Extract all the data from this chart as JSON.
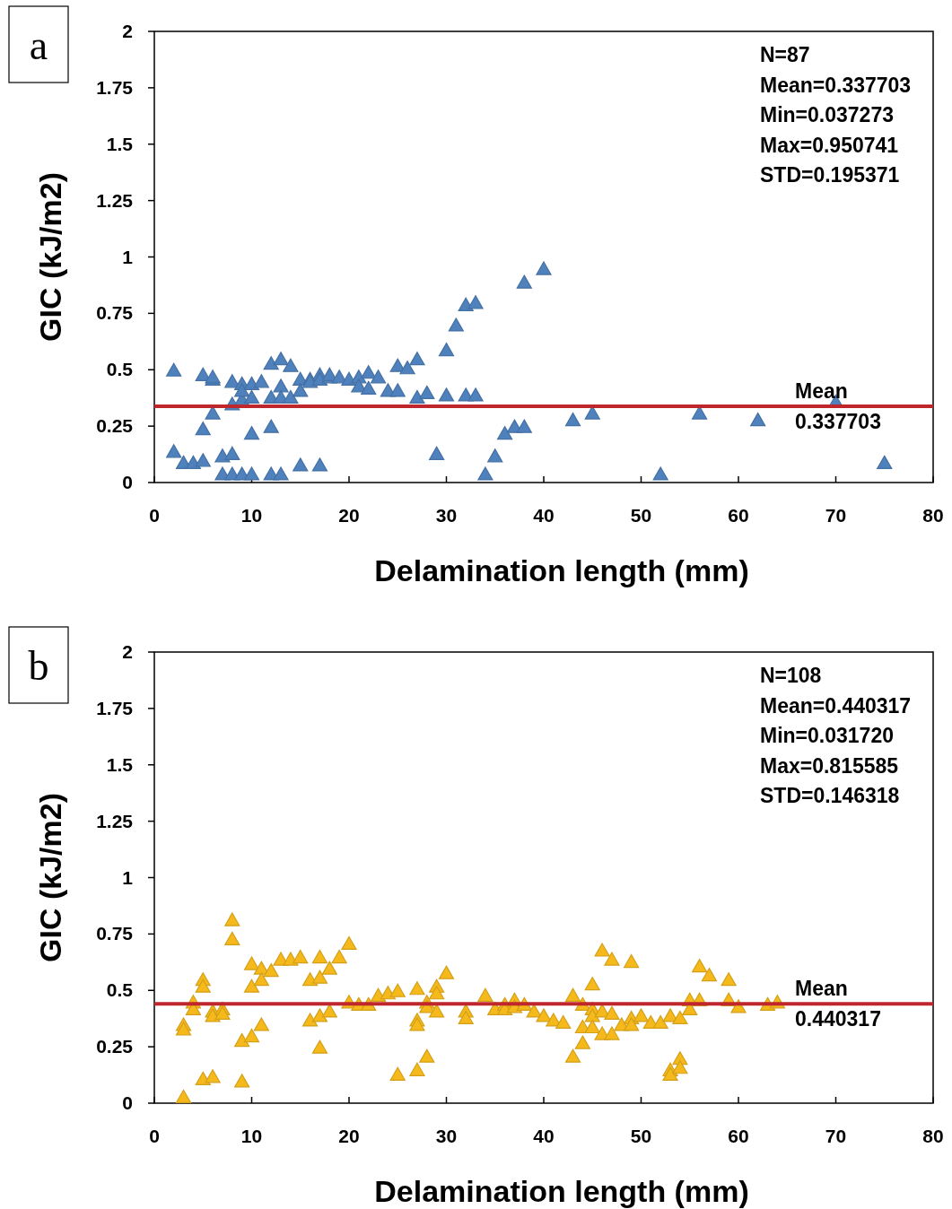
{
  "chart_data": [
    {
      "type": "scatter",
      "title": "a",
      "xlabel": "Delamination length (mm)",
      "ylabel": "GIC (kJ/m2)",
      "color": "#4f81bd",
      "marker": "triangle",
      "grid": false,
      "xlim": [
        0,
        80
      ],
      "xticks": [
        0,
        10,
        20,
        30,
        40,
        50,
        60,
        70,
        80
      ],
      "ylim": [
        0,
        2
      ],
      "yticks": [
        0,
        0.25,
        0.5,
        0.75,
        1,
        1.25,
        1.5,
        1.75,
        2
      ],
      "annotations": [
        "N=87",
        "Mean=0.337703",
        "Min=0.037273",
        "Max=0.950741",
        "STD=0.195371"
      ],
      "ref_lines": [
        {
          "axis": "y",
          "value": 0.337703,
          "label": "Mean\n0.337703",
          "color": "#c0272d"
        }
      ],
      "x": [
        2,
        2,
        3,
        4,
        5,
        5,
        5,
        6,
        6,
        6,
        7,
        7,
        8,
        8,
        8,
        8,
        9,
        9,
        9,
        9,
        10,
        10,
        10,
        10,
        11,
        12,
        12,
        12,
        12,
        13,
        13,
        13,
        13,
        14,
        14,
        15,
        15,
        15,
        16,
        16,
        17,
        17,
        17,
        18,
        18,
        19,
        20,
        21,
        21,
        22,
        22,
        23,
        24,
        25,
        25,
        26,
        27,
        27,
        28,
        29,
        30,
        30,
        31,
        32,
        32,
        33,
        33,
        34,
        35,
        36,
        37,
        38,
        38,
        40,
        43,
        45,
        52,
        56,
        62,
        70,
        75
      ],
      "values": [
        0.5,
        0.14,
        0.09,
        0.09,
        0.1,
        0.48,
        0.24,
        0.46,
        0.47,
        0.31,
        0.12,
        0.04,
        0.13,
        0.45,
        0.35,
        0.04,
        0.44,
        0.37,
        0.41,
        0.04,
        0.44,
        0.38,
        0.22,
        0.04,
        0.45,
        0.53,
        0.38,
        0.25,
        0.04,
        0.55,
        0.43,
        0.38,
        0.04,
        0.52,
        0.38,
        0.46,
        0.41,
        0.08,
        0.46,
        0.45,
        0.48,
        0.46,
        0.08,
        0.47,
        0.48,
        0.47,
        0.46,
        0.47,
        0.43,
        0.49,
        0.42,
        0.47,
        0.41,
        0.52,
        0.41,
        0.51,
        0.55,
        0.38,
        0.4,
        0.13,
        0.59,
        0.39,
        0.7,
        0.79,
        0.39,
        0.8,
        0.39,
        0.04,
        0.12,
        0.22,
        0.25,
        0.89,
        0.25,
        0.95,
        0.28,
        0.31,
        0.04,
        0.31,
        0.28,
        0.36,
        0.09
      ]
    },
    {
      "type": "scatter",
      "title": "b",
      "xlabel": "Delamination length (mm)",
      "ylabel": "GIC (kJ/m2)",
      "color": "#f5b91c",
      "marker": "triangle",
      "grid": false,
      "xlim": [
        0,
        80
      ],
      "xticks": [
        0,
        10,
        20,
        30,
        40,
        50,
        60,
        70,
        80
      ],
      "ylim": [
        0,
        2
      ],
      "yticks": [
        0,
        0.25,
        0.5,
        0.75,
        1,
        1.25,
        1.5,
        1.75,
        2
      ],
      "annotations": [
        "N=108",
        "Mean=0.440317",
        "Min=0.031720",
        "Max=0.815585",
        "STD=0.146318"
      ],
      "ref_lines": [
        {
          "axis": "y",
          "value": 0.440317,
          "label": "Mean\n0.440317",
          "color": "#c0272d"
        }
      ],
      "x": [
        3,
        3,
        3,
        4,
        4,
        5,
        5,
        5,
        6,
        6,
        6,
        7,
        7,
        8,
        8,
        9,
        9,
        10,
        10,
        10,
        11,
        11,
        11,
        12,
        13,
        14,
        15,
        16,
        16,
        17,
        17,
        17,
        17,
        18,
        18,
        19,
        20,
        20,
        21,
        22,
        23,
        24,
        25,
        25,
        27,
        27,
        27,
        27,
        28,
        28,
        28,
        29,
        29,
        29,
        30,
        32,
        32,
        34,
        35,
        36,
        36,
        37,
        37,
        38,
        39,
        40,
        41,
        42,
        43,
        43,
        44,
        44,
        44,
        45,
        45,
        45,
        45,
        46,
        46,
        46,
        47,
        47,
        47,
        48,
        49,
        49,
        49,
        50,
        51,
        52,
        53,
        53,
        53,
        54,
        54,
        54,
        55,
        55,
        56,
        56,
        57,
        59,
        59,
        60,
        63,
        64
      ],
      "values": [
        0.03,
        0.35,
        0.33,
        0.45,
        0.42,
        0.55,
        0.52,
        0.11,
        0.12,
        0.41,
        0.39,
        0.42,
        0.4,
        0.815,
        0.73,
        0.28,
        0.1,
        0.62,
        0.52,
        0.3,
        0.6,
        0.55,
        0.35,
        0.59,
        0.64,
        0.64,
        0.65,
        0.55,
        0.37,
        0.65,
        0.56,
        0.39,
        0.25,
        0.6,
        0.41,
        0.65,
        0.71,
        0.45,
        0.44,
        0.44,
        0.48,
        0.49,
        0.5,
        0.13,
        0.51,
        0.37,
        0.35,
        0.15,
        0.45,
        0.43,
        0.21,
        0.52,
        0.49,
        0.41,
        0.58,
        0.41,
        0.38,
        0.48,
        0.42,
        0.44,
        0.42,
        0.46,
        0.43,
        0.44,
        0.41,
        0.39,
        0.37,
        0.36,
        0.48,
        0.21,
        0.44,
        0.34,
        0.27,
        0.53,
        0.42,
        0.39,
        0.34,
        0.68,
        0.41,
        0.31,
        0.64,
        0.4,
        0.31,
        0.35,
        0.63,
        0.38,
        0.35,
        0.39,
        0.36,
        0.36,
        0.39,
        0.15,
        0.13,
        0.38,
        0.2,
        0.16,
        0.46,
        0.42,
        0.61,
        0.46,
        0.57,
        0.55,
        0.46,
        0.43,
        0.44,
        0.45
      ]
    }
  ]
}
